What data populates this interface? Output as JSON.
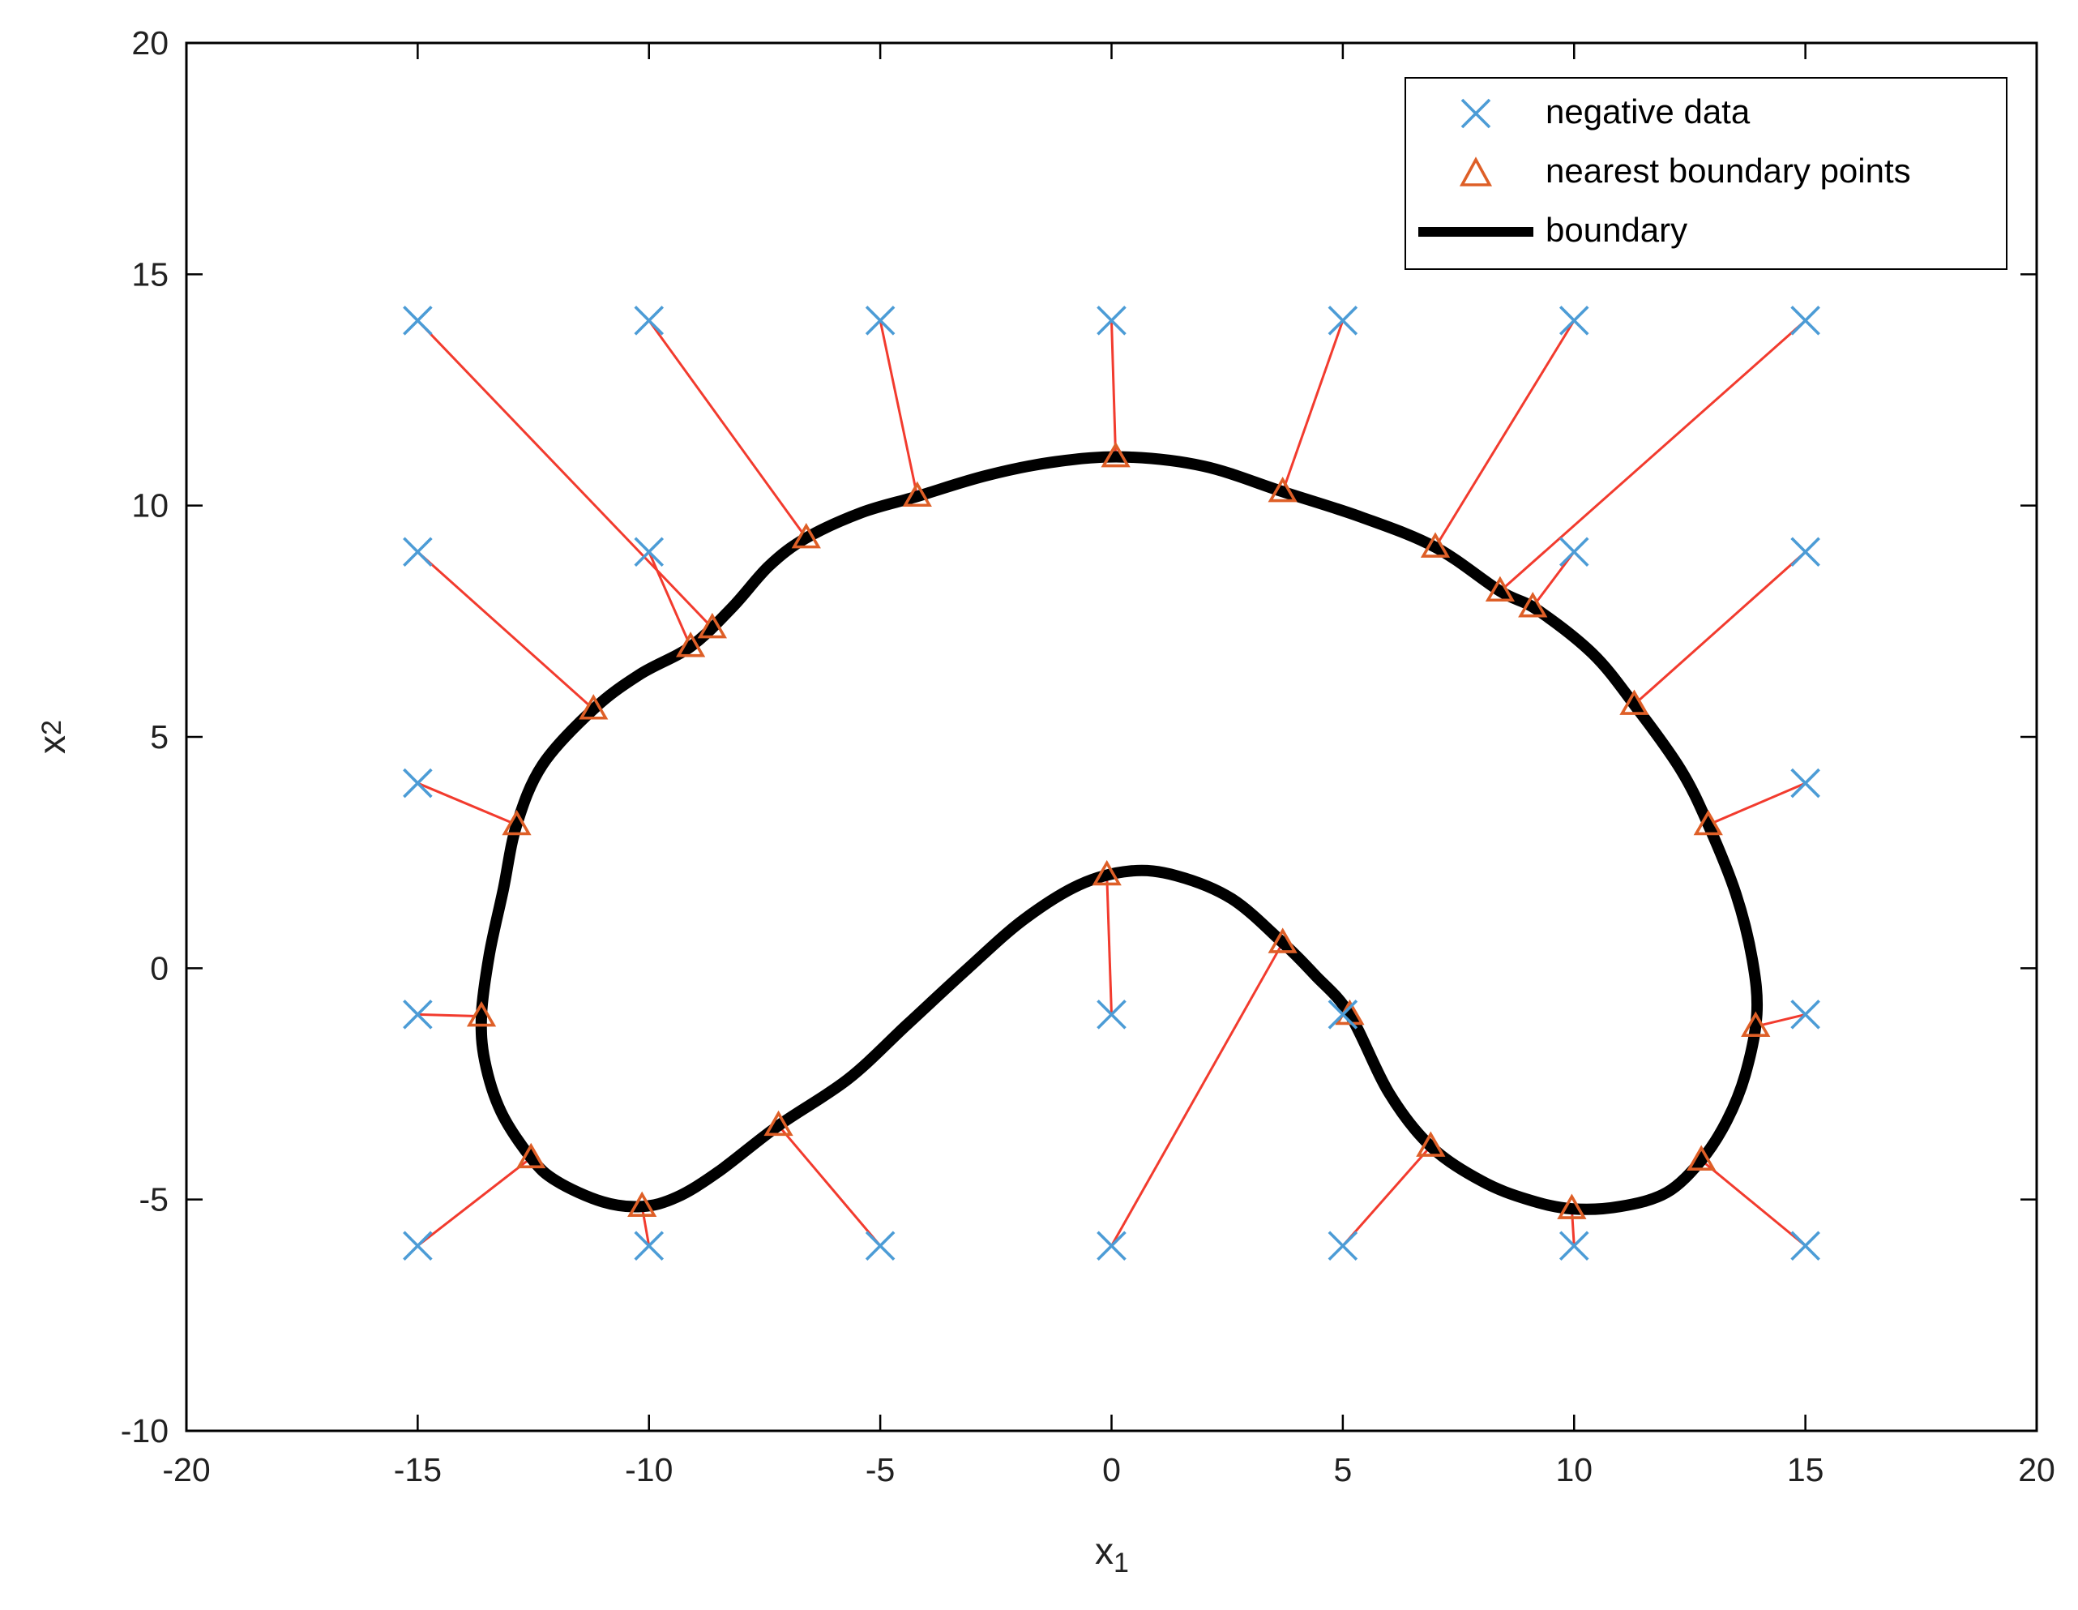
{
  "chart_data": {
    "type": "scatter",
    "title": "",
    "xlabel": {
      "base": "x",
      "sub": "1"
    },
    "ylabel": {
      "base": "x",
      "sub": "2"
    },
    "xlim": [
      -20,
      20
    ],
    "ylim": [
      -10,
      20
    ],
    "xticks": [
      -20,
      -15,
      -10,
      -5,
      0,
      5,
      10,
      15,
      20
    ],
    "yticks": [
      -10,
      -5,
      0,
      5,
      10,
      15,
      20
    ],
    "grid": false,
    "legend_position": "top-right",
    "legend": [
      {
        "label": "negative data",
        "marker": "x",
        "color": "#4c9cd6"
      },
      {
        "label": "nearest boundary points",
        "marker": "triangle",
        "color": "#de5f27"
      },
      {
        "label": "boundary",
        "marker": "line",
        "color": "#000000"
      }
    ],
    "colors": {
      "negative_data": "#4c9cd6",
      "nearest_boundary_points": "#de5f27",
      "connector_line": "#f23b2e",
      "boundary_line": "#000000",
      "axis": "#000000",
      "tick_text": "#212121"
    },
    "pairs": [
      {
        "point": [
          -15,
          14
        ],
        "nearest": [
          -8.7,
          7.4
        ]
      },
      {
        "point": [
          -10,
          14
        ],
        "nearest": [
          -6.6,
          9.3
        ]
      },
      {
        "point": [
          -5,
          14
        ],
        "nearest": [
          -4.2,
          10.2
        ]
      },
      {
        "point": [
          0,
          14
        ],
        "nearest": [
          0.1,
          11.0
        ]
      },
      {
        "point": [
          5,
          14
        ],
        "nearest": [
          3.7,
          10.3
        ]
      },
      {
        "point": [
          10,
          14
        ],
        "nearest": [
          7.0,
          9.1
        ]
      },
      {
        "point": [
          15,
          14
        ],
        "nearest": [
          8.4,
          8.15
        ]
      },
      {
        "point": [
          -15,
          9
        ],
        "nearest": [
          -11.2,
          5.6
        ]
      },
      {
        "point": [
          -10,
          9
        ],
        "nearest": [
          -9.1,
          6.95
        ]
      },
      {
        "point": [
          10,
          9
        ],
        "nearest": [
          9.1,
          7.8
        ]
      },
      {
        "point": [
          15,
          9
        ],
        "nearest": [
          11.3,
          5.7
        ]
      },
      {
        "point": [
          -15,
          4
        ],
        "nearest": [
          -12.86,
          3.1
        ]
      },
      {
        "point": [
          15,
          4
        ],
        "nearest": [
          12.9,
          3.1
        ]
      },
      {
        "point": [
          -15,
          -1
        ],
        "nearest": [
          -13.55,
          -1.05
        ]
      },
      {
        "point": [
          0,
          -1
        ],
        "nearest": [
          -0.1,
          2.0
        ]
      },
      {
        "point": [
          5,
          -1
        ],
        "nearest": [
          5.15,
          -1.0
        ]
      },
      {
        "point": [
          15,
          -1
        ],
        "nearest": [
          13.85,
          -1.25
        ]
      },
      {
        "point": [
          -15,
          -6
        ],
        "nearest": [
          -12.55,
          -4.1
        ]
      },
      {
        "point": [
          -10,
          -6
        ],
        "nearest": [
          -10.15,
          -5.15
        ]
      },
      {
        "point": [
          -5,
          -6
        ],
        "nearest": [
          -7.2,
          -3.4
        ]
      },
      {
        "point": [
          0,
          -6
        ],
        "nearest": [
          3.7,
          0.55
        ]
      },
      {
        "point": [
          5,
          -6
        ],
        "nearest": [
          6.9,
          -3.85
        ]
      },
      {
        "point": [
          10,
          -6
        ],
        "nearest": [
          9.95,
          -5.2
        ]
      },
      {
        "point": [
          15,
          -6
        ],
        "nearest": [
          12.75,
          -4.15
        ]
      }
    ],
    "boundary_control_points": [
      [
        0.3,
        11.05
      ],
      [
        2.0,
        10.85
      ],
      [
        3.7,
        10.3
      ],
      [
        5.4,
        9.75
      ],
      [
        7.0,
        9.1
      ],
      [
        8.4,
        8.15
      ],
      [
        9.2,
        7.75
      ],
      [
        10.4,
        6.8
      ],
      [
        11.3,
        5.7
      ],
      [
        12.3,
        4.3
      ],
      [
        12.9,
        3.1
      ],
      [
        13.5,
        1.6
      ],
      [
        13.85,
        0.2
      ],
      [
        13.95,
        -1.0
      ],
      [
        13.7,
        -2.3
      ],
      [
        13.3,
        -3.3
      ],
      [
        12.75,
        -4.15
      ],
      [
        12.0,
        -4.85
      ],
      [
        11.0,
        -5.15
      ],
      [
        9.95,
        -5.2
      ],
      [
        9.0,
        -5.0
      ],
      [
        8.0,
        -4.6
      ],
      [
        6.9,
        -3.85
      ],
      [
        6.0,
        -2.7
      ],
      [
        5.15,
        -1.0
      ],
      [
        4.4,
        -0.15
      ],
      [
        3.7,
        0.55
      ],
      [
        2.6,
        1.5
      ],
      [
        1.4,
        2.0
      ],
      [
        0.4,
        2.1
      ],
      [
        -0.7,
        1.8
      ],
      [
        -1.9,
        1.05
      ],
      [
        -3.1,
        0.0
      ],
      [
        -4.4,
        -1.2
      ],
      [
        -5.7,
        -2.4
      ],
      [
        -7.2,
        -3.4
      ],
      [
        -8.5,
        -4.4
      ],
      [
        -9.4,
        -4.95
      ],
      [
        -10.15,
        -5.15
      ],
      [
        -11.0,
        -5.05
      ],
      [
        -12.0,
        -4.6
      ],
      [
        -12.55,
        -4.1
      ],
      [
        -13.2,
        -3.1
      ],
      [
        -13.55,
        -2.0
      ],
      [
        -13.62,
        -1.0
      ],
      [
        -13.45,
        0.3
      ],
      [
        -13.15,
        1.7
      ],
      [
        -12.86,
        3.1
      ],
      [
        -12.3,
        4.4
      ],
      [
        -11.2,
        5.6
      ],
      [
        -10.2,
        6.35
      ],
      [
        -9.1,
        6.95
      ],
      [
        -8.2,
        7.8
      ],
      [
        -7.4,
        8.7
      ],
      [
        -6.6,
        9.3
      ],
      [
        -5.4,
        9.85
      ],
      [
        -4.2,
        10.2
      ],
      [
        -2.7,
        10.65
      ],
      [
        -1.2,
        10.95
      ]
    ]
  }
}
